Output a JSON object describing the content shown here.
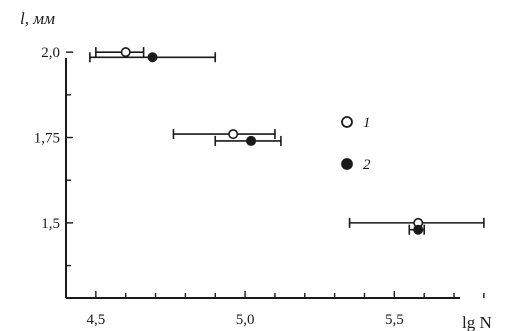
{
  "chart_data": {
    "type": "scatter",
    "title": "",
    "xlabel": "lg N",
    "ylabel": "l, мм",
    "xlim": [
      4.4,
      5.72
    ],
    "ylim": [
      1.28,
      2.1
    ],
    "x_ticks": [
      {
        "value": 4.5,
        "label": "4,5"
      },
      {
        "value": 5.0,
        "label": "5,0"
      },
      {
        "value": 5.5,
        "label": "5,5"
      }
    ],
    "y_ticks": [
      {
        "value": 2.0,
        "label": "2,0"
      },
      {
        "value": 1.75,
        "label": "1,75"
      },
      {
        "value": 1.5,
        "label": "1,5"
      }
    ],
    "grid": false,
    "legend_position": "right",
    "series": [
      {
        "name": "1",
        "marker": "open-circle",
        "points": [
          {
            "x": 4.6,
            "y": 2.0,
            "x_err": [
              4.5,
              4.66
            ]
          },
          {
            "x": 4.96,
            "y": 1.76,
            "x_err": [
              4.76,
              5.1
            ]
          },
          {
            "x": 5.58,
            "y": 1.5,
            "x_err": [
              5.35,
              5.8
            ]
          }
        ]
      },
      {
        "name": "2",
        "marker": "filled-circle",
        "points": [
          {
            "x": 4.69,
            "y": 1.985,
            "x_err": [
              4.48,
              4.9
            ]
          },
          {
            "x": 5.02,
            "y": 1.74,
            "x_err": [
              4.9,
              5.12
            ]
          },
          {
            "x": 5.58,
            "y": 1.48,
            "x_err": [
              5.55,
              5.6
            ]
          }
        ]
      }
    ]
  },
  "colors": {
    "ink": "#1a1a1a",
    "background": "#ffffff"
  }
}
